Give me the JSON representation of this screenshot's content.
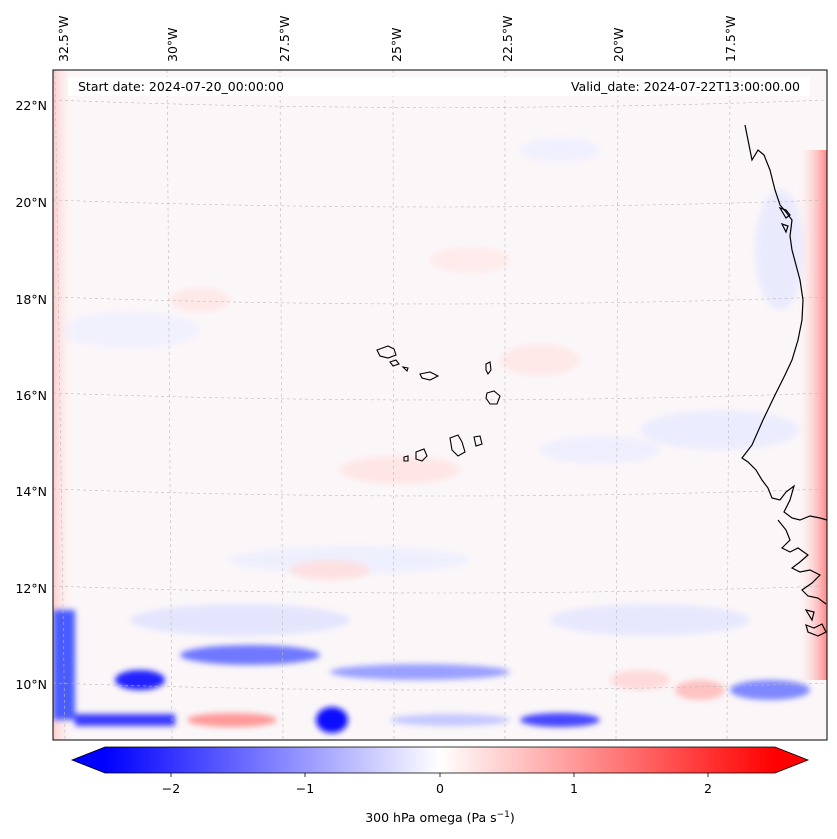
{
  "header": {
    "start_date": "Start date: 2024-07-20_00:00:00",
    "valid_date": "Valid_date: 2024-07-22T13:00:00.00"
  },
  "map": {
    "lon_labels": [
      "32.5°W",
      "30°W",
      "27.5°W",
      "25°W",
      "22.5°W",
      "20°W",
      "17.5°W"
    ],
    "lat_labels": [
      "22°N",
      "20°N",
      "18°N",
      "16°N",
      "14°N",
      "12°N",
      "10°N"
    ],
    "gridlines": true,
    "land_features": [
      "Cabo Verde islands",
      "West African coastline"
    ]
  },
  "colorbar": {
    "label_text": "300 hPa omega (Pa s",
    "label_sup": "−1",
    "label_close": ")",
    "ticks": [
      "−2",
      "−1",
      "0",
      "1",
      "2"
    ],
    "range": [
      -2.6,
      2.6
    ],
    "extend": "both",
    "colormap": "bwr",
    "colors": {
      "negative": "#0000ff",
      "zero": "#ffffff",
      "positive": "#ff0000"
    }
  }
}
